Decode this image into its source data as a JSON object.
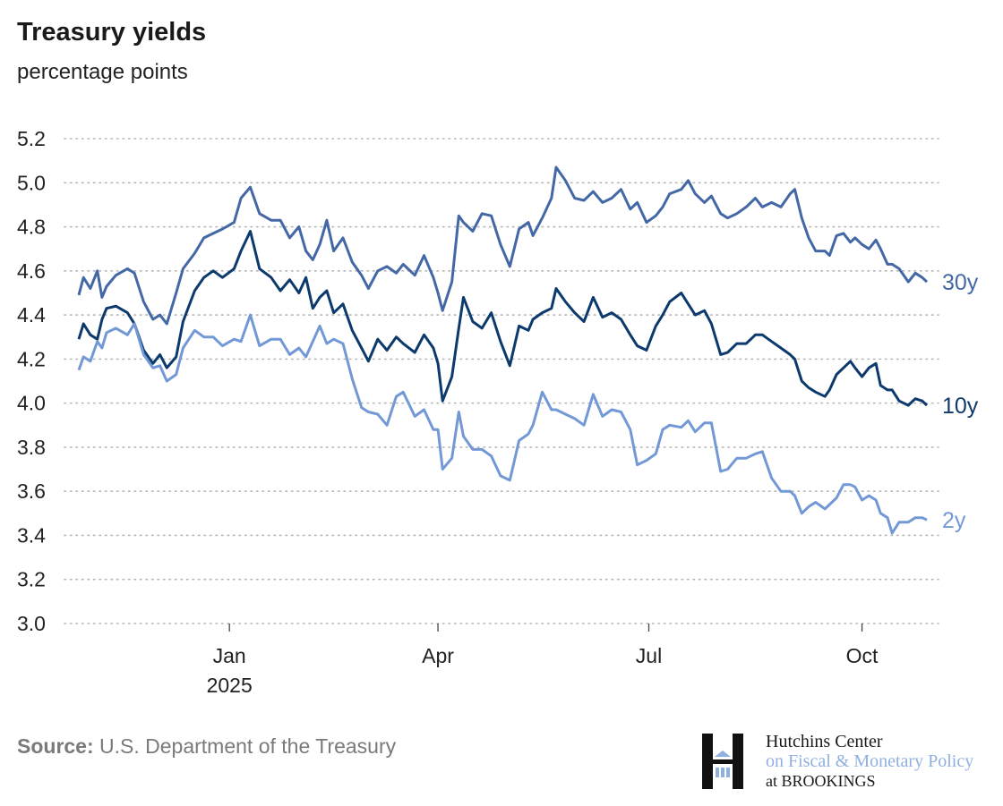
{
  "title": "Treasury yields",
  "subtitle": "percentage points",
  "source_label": "Source:",
  "source_text": "U.S. Department of the Treasury",
  "logo": {
    "line1": "Hutchins Center",
    "line2": "on Fiscal & Monetary Policy",
    "line3": "at BROOKINGS"
  },
  "chart_data": {
    "type": "line",
    "title": "Treasury yields",
    "subtitle": "percentage points",
    "ylim": [
      3.0,
      5.2
    ],
    "yticks": [
      "3.0",
      "3.2",
      "3.4",
      "3.6",
      "3.8",
      "4.0",
      "4.2",
      "4.4",
      "4.6",
      "4.8",
      "5.0",
      "5.2"
    ],
    "xlim": [
      "2024-10-28",
      "2025-10-29"
    ],
    "xticks": [
      {
        "date": "2025-01-01",
        "label": "Jan",
        "sublabel": "2025"
      },
      {
        "date": "2025-04-01",
        "label": "Apr",
        "sublabel": ""
      },
      {
        "date": "2025-07-01",
        "label": "Jul",
        "sublabel": ""
      },
      {
        "date": "2025-10-01",
        "label": "Oct",
        "sublabel": ""
      }
    ],
    "grid": "horizontal dotted",
    "legend": "direct labels at right end of lines",
    "x": [
      "2024-10-28",
      "2024-10-30",
      "2024-11-02",
      "2024-11-05",
      "2024-11-07",
      "2024-11-09",
      "2024-11-13",
      "2024-11-18",
      "2024-11-21",
      "2024-11-25",
      "2024-11-29",
      "2024-12-02",
      "2024-12-05",
      "2024-12-09",
      "2024-12-12",
      "2024-12-17",
      "2024-12-21",
      "2024-12-25",
      "2024-12-29",
      "2025-01-03",
      "2025-01-06",
      "2025-01-10",
      "2025-01-14",
      "2025-01-19",
      "2025-01-23",
      "2025-01-27",
      "2025-01-31",
      "2025-02-03",
      "2025-02-06",
      "2025-02-09",
      "2025-02-12",
      "2025-02-15",
      "2025-02-19",
      "2025-02-23",
      "2025-02-27",
      "2025-03-02",
      "2025-03-06",
      "2025-03-10",
      "2025-03-14",
      "2025-03-17",
      "2025-03-22",
      "2025-03-26",
      "2025-03-30",
      "2025-04-01",
      "2025-04-03",
      "2025-04-07",
      "2025-04-10",
      "2025-04-12",
      "2025-04-16",
      "2025-04-20",
      "2025-04-24",
      "2025-04-28",
      "2025-05-02",
      "2025-05-06",
      "2025-05-10",
      "2025-05-12",
      "2025-05-16",
      "2025-05-20",
      "2025-05-22",
      "2025-05-26",
      "2025-05-30",
      "2025-06-03",
      "2025-06-07",
      "2025-06-11",
      "2025-06-15",
      "2025-06-19",
      "2025-06-23",
      "2025-06-26",
      "2025-06-30",
      "2025-07-04",
      "2025-07-07",
      "2025-07-10",
      "2025-07-15",
      "2025-07-18",
      "2025-07-21",
      "2025-07-25",
      "2025-07-28",
      "2025-08-01",
      "2025-08-04",
      "2025-08-08",
      "2025-08-12",
      "2025-08-16",
      "2025-08-19",
      "2025-08-23",
      "2025-08-27",
      "2025-08-31",
      "2025-09-02",
      "2025-09-05",
      "2025-09-08",
      "2025-09-11",
      "2025-09-15",
      "2025-09-17",
      "2025-09-20",
      "2025-09-23",
      "2025-09-26",
      "2025-09-28",
      "2025-10-01",
      "2025-10-04",
      "2025-10-07",
      "2025-10-09",
      "2025-10-12",
      "2025-10-14",
      "2025-10-17",
      "2025-10-21",
      "2025-10-24",
      "2025-10-27",
      "2025-10-29"
    ],
    "series": [
      {
        "name": "30y",
        "color": "#4368a5",
        "values": [
          4.49,
          4.57,
          4.52,
          4.6,
          4.48,
          4.53,
          4.58,
          4.61,
          4.59,
          4.46,
          4.38,
          4.4,
          4.36,
          4.5,
          4.61,
          4.68,
          4.75,
          4.77,
          4.79,
          4.82,
          4.93,
          4.98,
          4.86,
          4.83,
          4.83,
          4.75,
          4.8,
          4.69,
          4.65,
          4.72,
          4.83,
          4.69,
          4.75,
          4.64,
          4.58,
          4.52,
          4.6,
          4.62,
          4.59,
          4.63,
          4.58,
          4.67,
          4.57,
          4.5,
          4.42,
          4.55,
          4.85,
          4.82,
          4.78,
          4.86,
          4.85,
          4.72,
          4.62,
          4.79,
          4.82,
          4.76,
          4.84,
          4.93,
          5.07,
          5.01,
          4.93,
          4.92,
          4.96,
          4.91,
          4.93,
          4.97,
          4.88,
          4.91,
          4.82,
          4.85,
          4.89,
          4.95,
          4.97,
          5.01,
          4.95,
          4.91,
          4.94,
          4.86,
          4.84,
          4.86,
          4.89,
          4.93,
          4.89,
          4.91,
          4.89,
          4.95,
          4.97,
          4.84,
          4.75,
          4.69,
          4.69,
          4.67,
          4.76,
          4.77,
          4.73,
          4.75,
          4.72,
          4.7,
          4.74,
          4.7,
          4.63,
          4.63,
          4.61,
          4.55,
          4.59,
          4.57,
          4.55
        ]
      },
      {
        "name": "10y",
        "color": "#0c3a6c",
        "values": [
          4.29,
          4.36,
          4.31,
          4.29,
          4.38,
          4.43,
          4.44,
          4.41,
          4.36,
          4.24,
          4.18,
          4.22,
          4.16,
          4.21,
          4.37,
          4.51,
          4.57,
          4.6,
          4.57,
          4.61,
          4.69,
          4.78,
          4.61,
          4.57,
          4.51,
          4.56,
          4.5,
          4.57,
          4.43,
          4.48,
          4.51,
          4.41,
          4.45,
          4.33,
          4.25,
          4.19,
          4.29,
          4.24,
          4.3,
          4.27,
          4.23,
          4.31,
          4.25,
          4.18,
          4.01,
          4.12,
          4.34,
          4.48,
          4.37,
          4.34,
          4.41,
          4.28,
          4.17,
          4.35,
          4.33,
          4.38,
          4.41,
          4.43,
          4.52,
          4.46,
          4.41,
          4.37,
          4.48,
          4.39,
          4.41,
          4.38,
          4.31,
          4.26,
          4.24,
          4.35,
          4.4,
          4.46,
          4.5,
          4.45,
          4.4,
          4.42,
          4.36,
          4.22,
          4.23,
          4.27,
          4.27,
          4.31,
          4.31,
          4.28,
          4.25,
          4.22,
          4.2,
          4.1,
          4.07,
          4.05,
          4.03,
          4.06,
          4.13,
          4.16,
          4.19,
          4.16,
          4.12,
          4.16,
          4.18,
          4.08,
          4.06,
          4.06,
          4.01,
          3.99,
          4.02,
          4.01,
          3.99
        ]
      },
      {
        "name": "2y",
        "color": "#7398d6",
        "values": [
          4.15,
          4.21,
          4.19,
          4.28,
          4.25,
          4.32,
          4.34,
          4.31,
          4.36,
          4.22,
          4.16,
          4.17,
          4.1,
          4.13,
          4.25,
          4.33,
          4.3,
          4.3,
          4.26,
          4.29,
          4.28,
          4.4,
          4.26,
          4.29,
          4.29,
          4.22,
          4.25,
          4.21,
          4.28,
          4.35,
          4.27,
          4.29,
          4.27,
          4.11,
          3.98,
          3.96,
          3.95,
          3.9,
          4.03,
          4.05,
          3.94,
          3.97,
          3.88,
          3.88,
          3.7,
          3.75,
          3.96,
          3.85,
          3.79,
          3.79,
          3.76,
          3.67,
          3.65,
          3.83,
          3.86,
          3.9,
          4.05,
          3.97,
          3.97,
          3.95,
          3.93,
          3.9,
          4.04,
          3.94,
          3.97,
          3.96,
          3.88,
          3.72,
          3.74,
          3.77,
          3.88,
          3.9,
          3.89,
          3.92,
          3.87,
          3.91,
          3.91,
          3.69,
          3.7,
          3.75,
          3.75,
          3.77,
          3.78,
          3.66,
          3.6,
          3.6,
          3.58,
          3.5,
          3.53,
          3.55,
          3.52,
          3.54,
          3.57,
          3.63,
          3.63,
          3.62,
          3.56,
          3.58,
          3.56,
          3.5,
          3.48,
          3.41,
          3.46,
          3.46,
          3.48,
          3.48,
          3.47
        ]
      }
    ]
  }
}
